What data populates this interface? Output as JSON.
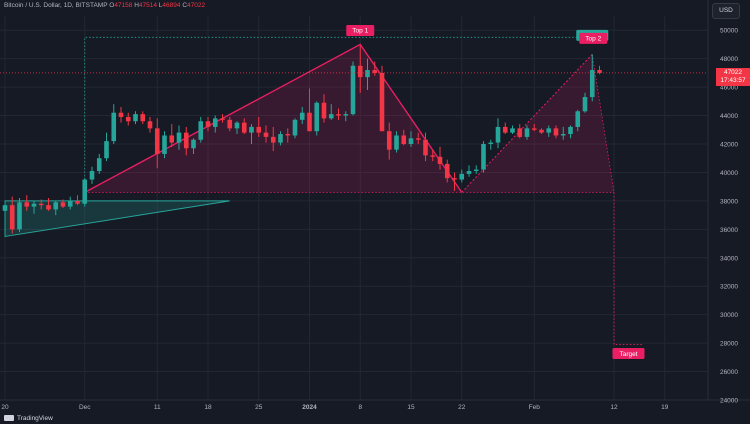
{
  "header": {
    "symbol": "Bitcoin / U.S. Dollar, 1D, BITSTAMP",
    "o_label": "O",
    "o": "47158",
    "h_label": "H",
    "h": "47514",
    "l_label": "L",
    "l": "46894",
    "c_label": "C",
    "c": "47022"
  },
  "currency_button": "USD",
  "last_price": {
    "value": "47022",
    "countdown": "17:43:57"
  },
  "branding": "TradingView",
  "colors": {
    "up": "#26a69a",
    "down": "#f23645",
    "pattern": "#e91e63",
    "background": "#161a25"
  },
  "chart_data": {
    "type": "candlestick",
    "symbol": "BTCUSD",
    "interval": "1D",
    "ylim": [
      24000,
      51000
    ],
    "yticks": [
      24000,
      26000,
      28000,
      30000,
      32000,
      34000,
      36000,
      38000,
      40000,
      42000,
      44000,
      46000,
      48000,
      50000
    ],
    "x_labels": [
      {
        "label": "20",
        "index": 0
      },
      {
        "label": "Dec",
        "index": 11
      },
      {
        "label": "11",
        "index": 21
      },
      {
        "label": "18",
        "index": 28
      },
      {
        "label": "25",
        "index": 35
      },
      {
        "label": "2024",
        "index": 42
      },
      {
        "label": "8",
        "index": 49
      },
      {
        "label": "15",
        "index": 56
      },
      {
        "label": "22",
        "index": 63
      },
      {
        "label": "Feb",
        "index": 73
      },
      {
        "label": "12",
        "index": 84
      },
      {
        "label": "19",
        "index": 91
      }
    ],
    "candles": [
      [
        37300,
        37900,
        36900,
        37700
      ],
      [
        37700,
        38300,
        35700,
        36000
      ],
      [
        36000,
        38200,
        35800,
        37900
      ],
      [
        37900,
        38400,
        37300,
        37600
      ],
      [
        37600,
        38000,
        37100,
        37800
      ],
      [
        37800,
        38100,
        37400,
        37700
      ],
      [
        37700,
        38200,
        37300,
        37400
      ],
      [
        37400,
        38000,
        37000,
        37900
      ],
      [
        37900,
        38100,
        37500,
        37600
      ],
      [
        37600,
        38300,
        37400,
        38000
      ],
      [
        38000,
        38400,
        37700,
        37800
      ],
      [
        37800,
        39600,
        37600,
        39500
      ],
      [
        39500,
        40400,
        39200,
        40100
      ],
      [
        40100,
        41300,
        39900,
        41000
      ],
      [
        41000,
        42800,
        40800,
        42200
      ],
      [
        42200,
        44800,
        42000,
        44200
      ],
      [
        44200,
        44600,
        43500,
        43900
      ],
      [
        43900,
        44200,
        43300,
        43600
      ],
      [
        43600,
        44300,
        43400,
        44100
      ],
      [
        44100,
        44300,
        43400,
        43600
      ],
      [
        43600,
        43900,
        42800,
        43100
      ],
      [
        43100,
        43800,
        40300,
        41300
      ],
      [
        41300,
        42900,
        41000,
        42600
      ],
      [
        42600,
        43400,
        41800,
        42100
      ],
      [
        42100,
        43300,
        41600,
        42800
      ],
      [
        42800,
        43200,
        41200,
        41700
      ],
      [
        41700,
        42400,
        41300,
        42300
      ],
      [
        42300,
        43900,
        42100,
        43600
      ],
      [
        43600,
        43900,
        42900,
        43200
      ],
      [
        43200,
        44000,
        42800,
        43800
      ],
      [
        43800,
        44100,
        43500,
        43700
      ],
      [
        43700,
        43900,
        42900,
        43100
      ],
      [
        43100,
        43600,
        42700,
        43500
      ],
      [
        43500,
        43800,
        42700,
        42800
      ],
      [
        42800,
        43400,
        42000,
        43200
      ],
      [
        43200,
        43900,
        42500,
        42800
      ],
      [
        42800,
        43300,
        42100,
        42500
      ],
      [
        42500,
        43200,
        41500,
        42100
      ],
      [
        42100,
        42900,
        41900,
        42700
      ],
      [
        42700,
        43100,
        42100,
        42600
      ],
      [
        42600,
        43800,
        42400,
        43700
      ],
      [
        43700,
        44600,
        43400,
        44200
      ],
      [
        44200,
        45900,
        42900,
        42900
      ],
      [
        42900,
        45000,
        42600,
        44900
      ],
      [
        44900,
        45500,
        43500,
        43800
      ],
      [
        43800,
        44800,
        43700,
        44100
      ],
      [
        44100,
        44500,
        43700,
        44000
      ],
      [
        44000,
        44300,
        43600,
        44100
      ],
      [
        44100,
        47800,
        44000,
        47500
      ],
      [
        47500,
        48900,
        45600,
        46700
      ],
      [
        46700,
        48000,
        45800,
        47200
      ],
      [
        47200,
        47800,
        46800,
        47000
      ],
      [
        47000,
        47500,
        42900,
        42900
      ],
      [
        42900,
        43500,
        40900,
        41600
      ],
      [
        41600,
        42900,
        41400,
        42600
      ],
      [
        42600,
        43000,
        41900,
        42000
      ],
      [
        42000,
        42900,
        41800,
        42400
      ],
      [
        42400,
        42800,
        42000,
        42300
      ],
      [
        42300,
        42800,
        40800,
        41200
      ],
      [
        41200,
        41600,
        40800,
        41100
      ],
      [
        41100,
        41800,
        40200,
        40600
      ],
      [
        40600,
        40900,
        39300,
        39600
      ],
      [
        39600,
        40000,
        38700,
        39500
      ],
      [
        39500,
        40200,
        39300,
        39900
      ],
      [
        39900,
        40500,
        39700,
        40100
      ],
      [
        40100,
        40500,
        39900,
        40200
      ],
      [
        40200,
        42200,
        40000,
        42000
      ],
      [
        42000,
        42300,
        41600,
        42100
      ],
      [
        42100,
        43800,
        41700,
        43200
      ],
      [
        43200,
        43500,
        42700,
        42800
      ],
      [
        42800,
        43300,
        42700,
        43100
      ],
      [
        43100,
        43400,
        42400,
        42500
      ],
      [
        42500,
        43300,
        42300,
        43100
      ],
      [
        43100,
        43400,
        42900,
        43000
      ],
      [
        43000,
        43100,
        42700,
        42800
      ],
      [
        42800,
        43300,
        42500,
        43100
      ],
      [
        43100,
        43300,
        42400,
        42600
      ],
      [
        42600,
        43200,
        42300,
        42700
      ],
      [
        42700,
        43300,
        42400,
        43200
      ],
      [
        43200,
        44400,
        42900,
        44300
      ],
      [
        44300,
        45600,
        44200,
        45300
      ],
      [
        45300,
        48300,
        45000,
        47200
      ],
      [
        47200,
        47500,
        46900,
        47000
      ]
    ],
    "pattern": {
      "type": "double top",
      "top_1": {
        "label": "Top 1",
        "index": 49,
        "price": 49000
      },
      "top_2": {
        "label": "Top 2",
        "index": 81,
        "price": 48300
      },
      "neckline": 38600,
      "trough_index": 63,
      "target_high": {
        "label": "Target",
        "price": 49500
      },
      "target_low": {
        "label": "Target",
        "price": 27900
      }
    },
    "triangle": {
      "from_index": 0,
      "to_index": 31,
      "upper_start": 38000,
      "upper_end": 38000,
      "lower_start": 35500
    }
  }
}
